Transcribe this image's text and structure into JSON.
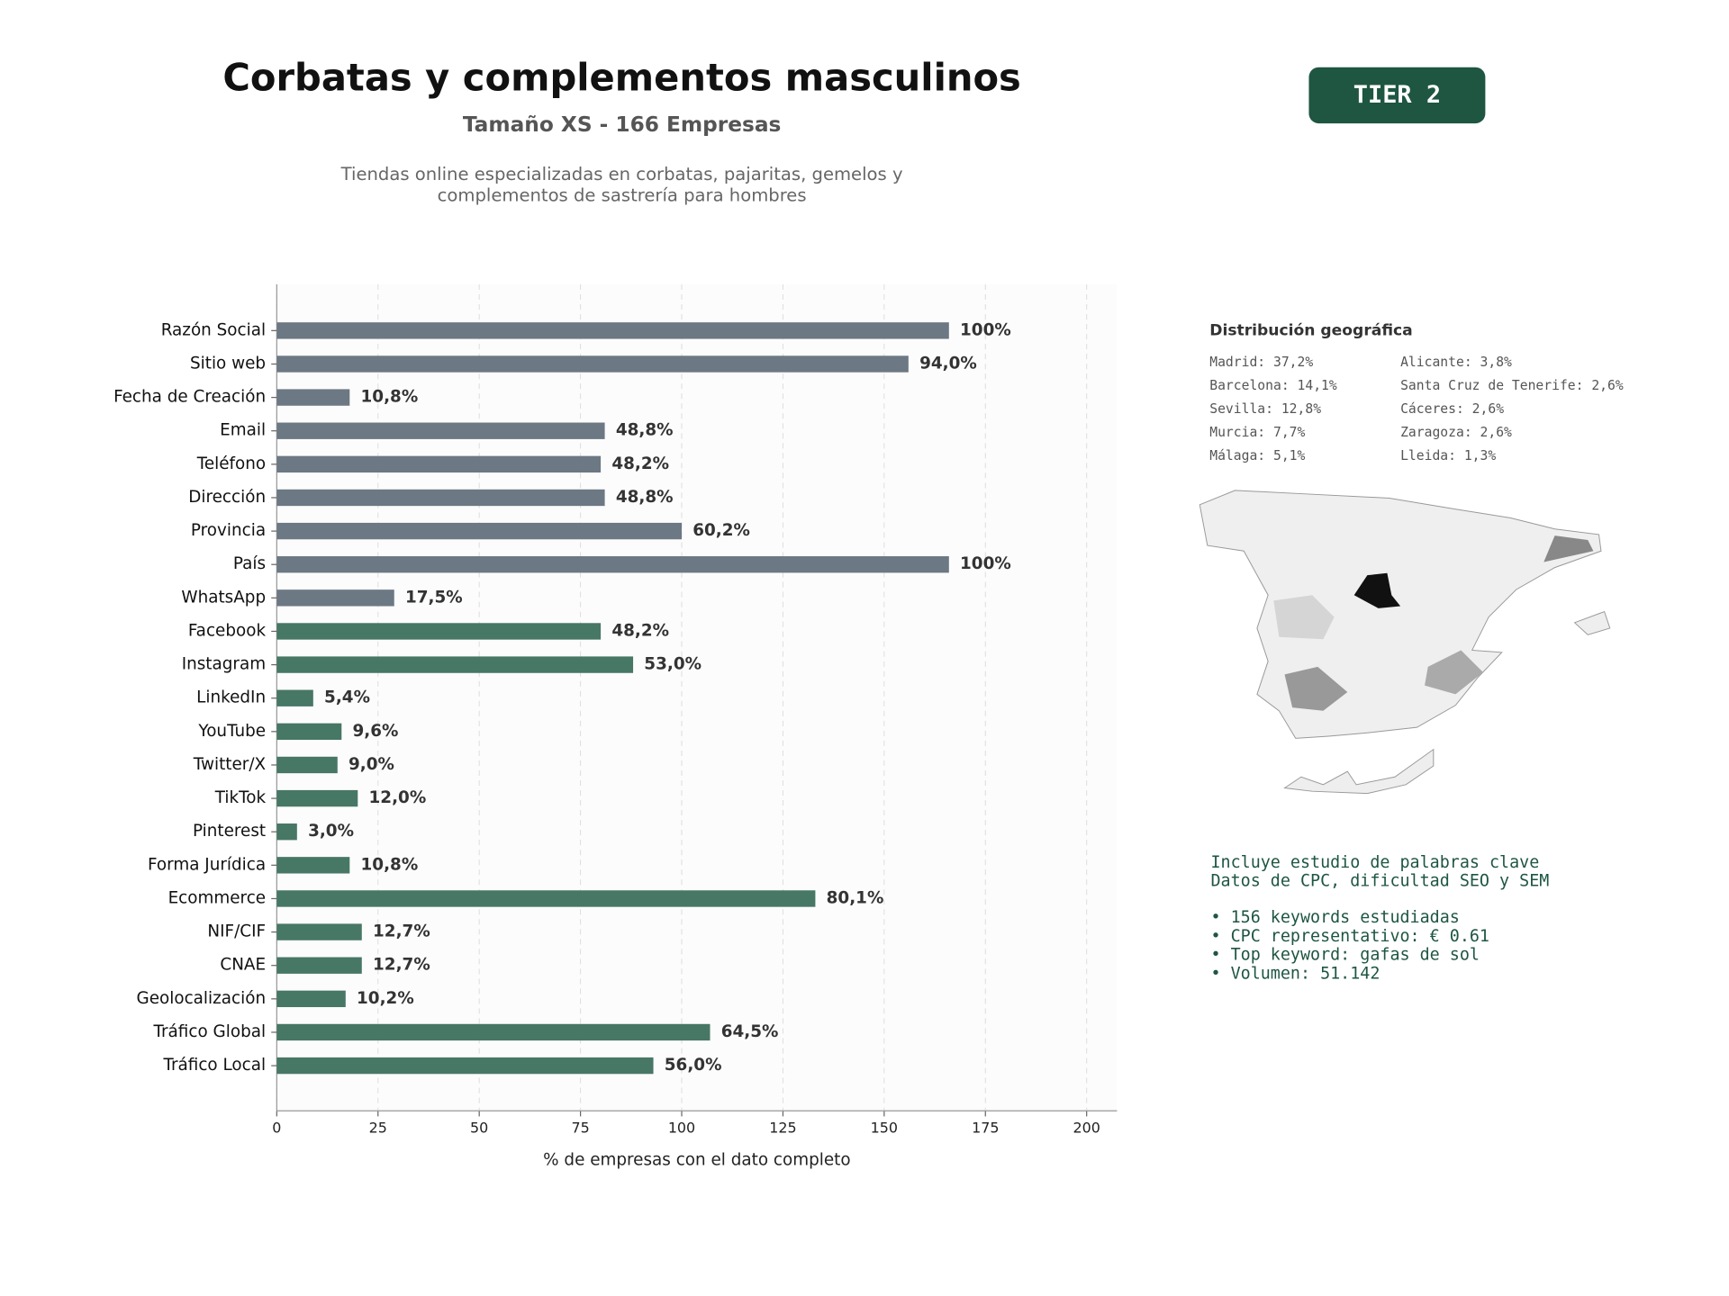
{
  "chart_data": {
    "type": "barh",
    "title": "Corbatas y complementos masculinos",
    "subtitle": "Tamaño XS - 166 Empresas",
    "description": [
      "Tiendas online especializadas en corbatas, pajaritas, gemelos y",
      "complementos de sastrería para hombres"
    ],
    "badge": "TIER 2",
    "xlabel": "% de empresas con el dato completo",
    "categories": [
      "Razón Social",
      "Sitio web",
      "Fecha de Creación",
      "Email",
      "Teléfono",
      "Dirección",
      "Provincia",
      "País",
      "WhatsApp",
      "Facebook",
      "Instagram",
      "LinkedIn",
      "YouTube",
      "Twitter/X",
      "TikTok",
      "Pinterest",
      "Forma Jurídica",
      "Ecommerce",
      "NIF/CIF",
      "CNAE",
      "Geolocalización",
      "Tráfico Global",
      "Tráfico Local"
    ],
    "values": [
      166,
      156,
      18,
      81,
      80,
      81,
      100,
      166,
      29,
      80,
      88,
      9,
      16,
      15,
      20,
      5,
      18,
      133,
      21,
      21,
      17,
      107,
      93
    ],
    "value_labels": [
      "100%",
      "94,0%",
      "10,8%",
      "48,8%",
      "48,2%",
      "48,8%",
      "60,2%",
      "100%",
      "17,5%",
      "48,2%",
      "53,0%",
      "5,4%",
      "9,6%",
      "9,0%",
      "12,0%",
      "3,0%",
      "10,8%",
      "80,1%",
      "12,7%",
      "12,7%",
      "10,2%",
      "64,5%",
      "56,0%"
    ],
    "colors": [
      "#6c7883",
      "#6c7883",
      "#6c7883",
      "#6c7883",
      "#6c7883",
      "#6c7883",
      "#6c7883",
      "#6c7883",
      "#6c7883",
      "#477765",
      "#477765",
      "#477765",
      "#477765",
      "#477765",
      "#477765",
      "#477765",
      "#477765",
      "#477765",
      "#477765",
      "#477765",
      "#477765",
      "#477765",
      "#477765"
    ],
    "xlim": [
      0,
      207.5
    ],
    "xticks": [
      0,
      25,
      50,
      75,
      100,
      125,
      150,
      175,
      200
    ],
    "grid": true
  },
  "geo": {
    "title": "Distribución geográfica",
    "column1": [
      "Madrid: 37,2%",
      "Barcelona: 14,1%",
      "Sevilla: 12,8%",
      "Murcia: 7,7%",
      "Málaga: 5,1%"
    ],
    "column2": [
      "Alicante: 3,8%",
      "Santa Cruz de Tenerife: 2,6%",
      "Cáceres: 2,6%",
      "Zaragoza: 2,6%",
      "Lleida: 1,3%"
    ]
  },
  "keywords": {
    "intro": [
      "Incluye estudio de palabras clave",
      "Datos de CPC, dificultad SEO y SEM"
    ],
    "bullets": [
      "• 156 keywords estudiadas",
      "• CPC representativo: € 0.61",
      "• Top keyword: gafas de sol",
      "• Volumen: 51.142"
    ]
  }
}
